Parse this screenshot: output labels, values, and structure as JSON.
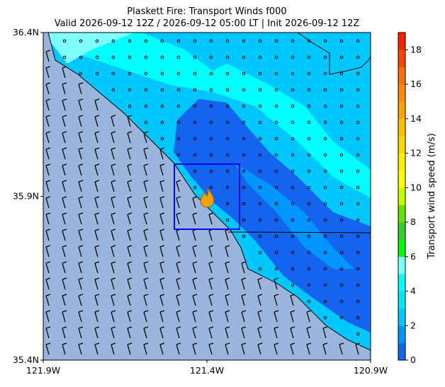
{
  "title": [
    "Plaskett Fire: Transport Winds f000",
    "Valid 2026-09-12 12Z / 2026-09-12 05:00 LT | Init 2026-09-12 12Z"
  ],
  "map": {
    "xlim": [
      -121.9,
      -120.9
    ],
    "ylim": [
      35.4,
      36.4
    ],
    "xticks": [
      {
        "value": -121.9,
        "label": "121.9W"
      },
      {
        "value": -121.4,
        "label": "121.4W"
      },
      {
        "value": -120.9,
        "label": "120.9W"
      }
    ],
    "yticks": [
      {
        "value": 35.4,
        "label": "35.4N"
      },
      {
        "value": 35.9,
        "label": "35.9N"
      },
      {
        "value": 36.4,
        "label": "36.4N"
      }
    ]
  },
  "colorbar": {
    "label": "Transport wind speed (m/s)",
    "lim": [
      0,
      19
    ],
    "ticks": [
      0,
      2,
      4,
      6,
      8,
      10,
      12,
      14,
      16,
      18
    ],
    "colors": [
      "#1464f0",
      "#0096ff",
      "#00c8ff",
      "#00e6ff",
      "#00ffff",
      "#80ffff",
      "#00ff00",
      "#32cd32",
      "#66e000",
      "#c8ff00",
      "#ffff00",
      "#ffee00",
      "#ffd700",
      "#ffc000",
      "#ffa500",
      "#ff8c00",
      "#ff7000",
      "#ff4500",
      "#ff2000"
    ]
  }
}
